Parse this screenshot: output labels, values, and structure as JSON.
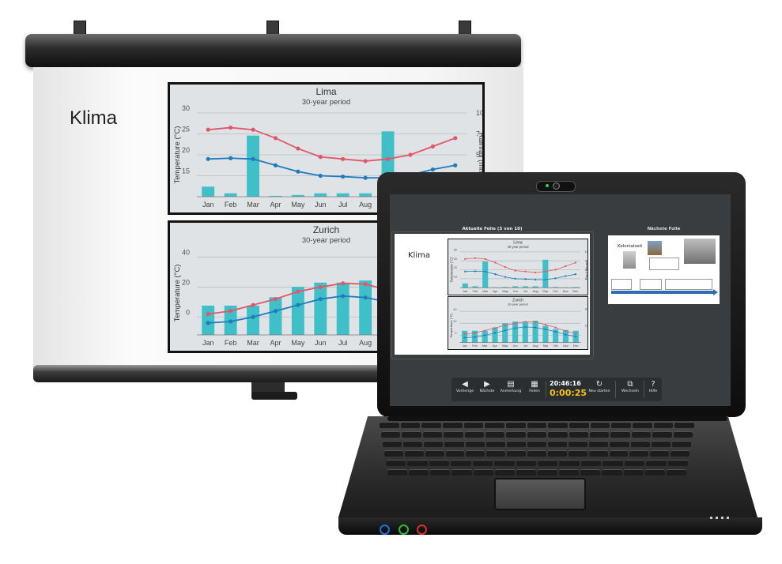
{
  "projector_slide": {
    "title": "Klima"
  },
  "chart_data": [
    {
      "type": "line",
      "title": "Lima",
      "subtitle": "30-year period",
      "categories": [
        "Jan",
        "Feb",
        "Mar",
        "Apr",
        "May",
        "Jun",
        "Jul",
        "Aug",
        "Sep",
        "Oct",
        "Nov",
        "Dec"
      ],
      "ylabel": "Temperature (°C)",
      "y2label": "Rainfall (mm)",
      "ylim": [
        10,
        30
      ],
      "y2lim": [
        0,
        10
      ],
      "yticks": [
        "15",
        "20",
        "25",
        "30"
      ],
      "y2ticks": [
        "2.5",
        "5",
        "7.5",
        "10"
      ],
      "series": [
        {
          "kind": "line",
          "color": "#e0576a",
          "values": [
            26,
            26.5,
            26,
            24,
            21.5,
            19.5,
            19,
            18.5,
            19,
            20,
            22,
            24
          ]
        },
        {
          "kind": "line",
          "color": "#1f7bbd",
          "values": [
            19,
            19.2,
            19,
            17.5,
            16,
            15,
            14.8,
            14.5,
            14.5,
            15.2,
            16.5,
            17.5
          ]
        },
        {
          "kind": "bar",
          "color": "#3fc0c8",
          "axis": "right",
          "values": [
            1.2,
            0.4,
            7.3,
            0.1,
            0.2,
            0.4,
            0.4,
            0.4,
            7.8,
            0.2,
            0.1,
            0.2
          ]
        }
      ]
    },
    {
      "type": "line",
      "title": "Zurich",
      "subtitle": "30-year period",
      "categories": [
        "Jan",
        "Feb",
        "Mar",
        "Apr",
        "May",
        "Jun",
        "Jul",
        "Aug",
        "Sep",
        "Oct",
        "Nov",
        "Dec"
      ],
      "ylabel": "Temperature (°C)",
      "y2label": "",
      "ylim": [
        -12,
        44
      ],
      "y2lim": [
        0,
        200
      ],
      "yticks": [
        "0",
        "20",
        "40"
      ],
      "y2ticks": [
        "100",
        "200"
      ],
      "series": [
        {
          "kind": "line",
          "color": "#e0576a",
          "values": [
            2,
            4,
            8,
            12,
            17,
            20,
            22.5,
            22,
            18,
            13,
            7,
            3
          ]
        },
        {
          "kind": "line",
          "color": "#1f7bbd",
          "values": [
            -4,
            -3,
            0,
            4,
            8,
            12,
            14,
            13,
            10,
            6,
            1,
            -2
          ]
        },
        {
          "kind": "bar",
          "color": "#3fc0c8",
          "axis": "right",
          "values": [
            70,
            70,
            70,
            90,
            115,
            125,
            125,
            130,
            100,
            80,
            75,
            70
          ]
        }
      ]
    }
  ],
  "presenter": {
    "current_label": "Aktuelle Folie (3 von 10)",
    "next_label": "Nächste Folie",
    "current_slide_title": "Klima",
    "next_slide_title": "Kolonialzeit",
    "clock": "20:46:16",
    "elapsed": "0:00:25",
    "toolbar": [
      {
        "label": "Vorherige",
        "icon": "arrow-left-icon",
        "glyph": "◀"
      },
      {
        "label": "Nächste",
        "icon": "arrow-right-icon",
        "glyph": "▶"
      },
      {
        "label": "Anmerkung",
        "icon": "notes-icon",
        "glyph": "▤"
      },
      {
        "label": "Folien",
        "icon": "grid-icon",
        "glyph": "▦"
      },
      {
        "label": "Neu starten",
        "icon": "restart-icon",
        "glyph": "↻"
      },
      {
        "label": "Wechseln",
        "icon": "switch-display-icon",
        "glyph": "⧉"
      },
      {
        "label": "Hilfe",
        "icon": "help-icon",
        "glyph": "?"
      }
    ]
  }
}
